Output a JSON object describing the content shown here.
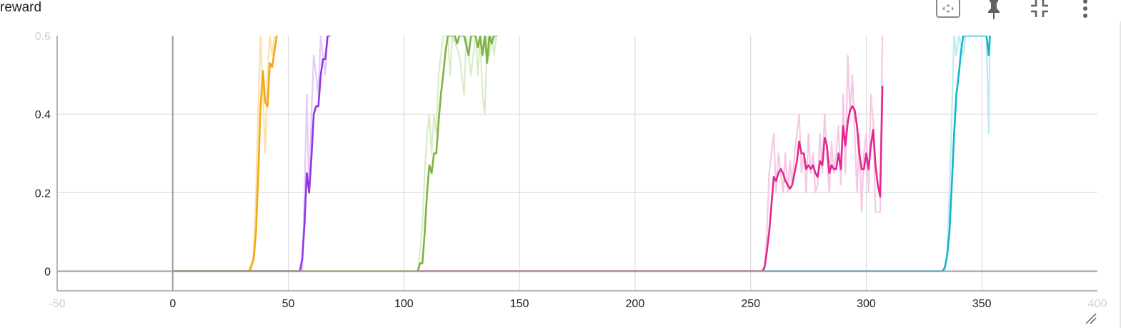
{
  "card": {
    "title": "reward",
    "tools": [
      {
        "name": "fit-domain-icon"
      },
      {
        "name": "pin-icon"
      },
      {
        "name": "collapse-icon"
      },
      {
        "name": "more-vert-icon"
      }
    ]
  },
  "chart_data": {
    "type": "line",
    "title": "reward",
    "xlabel": "",
    "ylabel": "",
    "xlim": [
      -50,
      400
    ],
    "ylim": [
      -0.05,
      0.6
    ],
    "x_ticks": [
      {
        "value": -50,
        "label": "-50",
        "faint": true
      },
      {
        "value": 0,
        "label": "0",
        "faint": false
      },
      {
        "value": 50,
        "label": "50",
        "faint": false
      },
      {
        "value": 100,
        "label": "100",
        "faint": false
      },
      {
        "value": 150,
        "label": "150",
        "faint": false
      },
      {
        "value": 200,
        "label": "200",
        "faint": false
      },
      {
        "value": 250,
        "label": "250",
        "faint": false
      },
      {
        "value": 300,
        "label": "300",
        "faint": false
      },
      {
        "value": 350,
        "label": "350",
        "faint": false
      },
      {
        "value": 400,
        "label": "400",
        "faint": true
      }
    ],
    "y_ticks": [
      {
        "value": 0,
        "label": "0",
        "faint": false
      },
      {
        "value": 0.2,
        "label": "0.2",
        "faint": false
      },
      {
        "value": 0.4,
        "label": "0.4",
        "faint": false
      },
      {
        "value": 0.6,
        "label": "0.6",
        "faint": true
      }
    ],
    "grid": true,
    "series": [
      {
        "color": "#f2a90f",
        "raw_color": "#fbe0ae",
        "smoothed": [
          [
            0,
            0
          ],
          [
            33,
            0
          ],
          [
            35,
            0.03
          ],
          [
            36,
            0.1
          ],
          [
            37,
            0.25
          ],
          [
            38,
            0.42
          ],
          [
            39,
            0.51
          ],
          [
            40,
            0.43
          ],
          [
            41,
            0.42
          ],
          [
            42,
            0.53
          ],
          [
            43,
            0.52
          ],
          [
            44,
            0.56
          ],
          [
            45,
            0.6
          ]
        ],
        "raw": [
          [
            0,
            0
          ],
          [
            34,
            0
          ],
          [
            35,
            0.05
          ],
          [
            36,
            0.2
          ],
          [
            37,
            0.42
          ],
          [
            38,
            0.6
          ],
          [
            39,
            0.45
          ],
          [
            40,
            0.3
          ],
          [
            41,
            0.5
          ],
          [
            42,
            0.6
          ],
          [
            43,
            0.55
          ],
          [
            44,
            0.6
          ]
        ]
      },
      {
        "color": "#9334e6",
        "raw_color": "#e3ccf8",
        "smoothed": [
          [
            0,
            0
          ],
          [
            55,
            0
          ],
          [
            56,
            0.03
          ],
          [
            57,
            0.12
          ],
          [
            58,
            0.25
          ],
          [
            59,
            0.2
          ],
          [
            60,
            0.29
          ],
          [
            61,
            0.4
          ],
          [
            62,
            0.42
          ],
          [
            63,
            0.42
          ],
          [
            64,
            0.5
          ],
          [
            65,
            0.54
          ],
          [
            66,
            0.54
          ],
          [
            67,
            0.6
          ],
          [
            68,
            0.6
          ]
        ],
        "raw": [
          [
            56,
            0
          ],
          [
            57,
            0.2
          ],
          [
            58,
            0.45
          ],
          [
            59,
            0.2
          ],
          [
            60,
            0.4
          ],
          [
            61,
            0.55
          ],
          [
            62,
            0.5
          ],
          [
            63,
            0.45
          ],
          [
            64,
            0.6
          ],
          [
            65,
            0.55
          ],
          [
            66,
            0.5
          ],
          [
            67,
            0.6
          ]
        ]
      },
      {
        "color": "#7cb342",
        "raw_color": "#d9ecc7",
        "smoothed": [
          [
            0,
            0
          ],
          [
            106,
            0
          ],
          [
            107,
            0.02
          ],
          [
            108,
            0.02
          ],
          [
            109,
            0.1
          ],
          [
            110,
            0.2
          ],
          [
            111,
            0.27
          ],
          [
            112,
            0.25
          ],
          [
            113,
            0.3
          ],
          [
            114,
            0.3
          ],
          [
            115,
            0.38
          ],
          [
            116,
            0.45
          ],
          [
            117,
            0.5
          ],
          [
            118,
            0.56
          ],
          [
            119,
            0.6
          ],
          [
            122,
            0.6
          ],
          [
            123,
            0.58
          ],
          [
            124,
            0.6
          ],
          [
            126,
            0.6
          ],
          [
            128,
            0.55
          ],
          [
            129,
            0.6
          ],
          [
            131,
            0.6
          ],
          [
            132,
            0.57
          ],
          [
            133,
            0.6
          ],
          [
            134,
            0.55
          ],
          [
            135,
            0.6
          ],
          [
            136,
            0.53
          ],
          [
            137,
            0.6
          ],
          [
            138,
            0.58
          ],
          [
            139,
            0.6
          ],
          [
            140,
            0.6
          ]
        ],
        "raw": [
          [
            106,
            0
          ],
          [
            107,
            0.05
          ],
          [
            108,
            0.12
          ],
          [
            109,
            0.25
          ],
          [
            110,
            0.35
          ],
          [
            111,
            0.4
          ],
          [
            112,
            0.3
          ],
          [
            113,
            0.4
          ],
          [
            114,
            0.35
          ],
          [
            115,
            0.5
          ],
          [
            116,
            0.55
          ],
          [
            117,
            0.6
          ],
          [
            119,
            0.6
          ],
          [
            120,
            0.5
          ],
          [
            121,
            0.6
          ],
          [
            124,
            0.55
          ],
          [
            126,
            0.45
          ],
          [
            127,
            0.6
          ],
          [
            129,
            0.5
          ],
          [
            130,
            0.55
          ],
          [
            131,
            0.6
          ],
          [
            132,
            0.5
          ],
          [
            133,
            0.6
          ],
          [
            134,
            0.45
          ],
          [
            135,
            0.4
          ],
          [
            136,
            0.6
          ],
          [
            137,
            0.55
          ],
          [
            138,
            0.6
          ],
          [
            139,
            0.55
          ],
          [
            140,
            0.6
          ]
        ]
      },
      {
        "color": "#e52592",
        "raw_color": "#f6c8e2",
        "smoothed": [
          [
            106,
            0
          ],
          [
            255,
            0
          ],
          [
            256,
            0.01
          ],
          [
            257,
            0.05
          ],
          [
            258,
            0.1
          ],
          [
            259,
            0.17
          ],
          [
            260,
            0.24
          ],
          [
            261,
            0.23
          ],
          [
            262,
            0.25
          ],
          [
            263,
            0.26
          ],
          [
            264,
            0.25
          ],
          [
            265,
            0.23
          ],
          [
            266,
            0.22
          ],
          [
            267,
            0.21
          ],
          [
            268,
            0.22
          ],
          [
            269,
            0.25
          ],
          [
            270,
            0.28
          ],
          [
            271,
            0.33
          ],
          [
            272,
            0.3
          ],
          [
            273,
            0.3
          ],
          [
            274,
            0.26
          ],
          [
            275,
            0.27
          ],
          [
            276,
            0.26
          ],
          [
            277,
            0.27
          ],
          [
            278,
            0.25
          ],
          [
            279,
            0.24
          ],
          [
            280,
            0.28
          ],
          [
            281,
            0.27
          ],
          [
            282,
            0.34
          ],
          [
            283,
            0.32
          ],
          [
            284,
            0.25
          ],
          [
            285,
            0.27
          ],
          [
            286,
            0.26
          ],
          [
            287,
            0.26
          ],
          [
            288,
            0.3
          ],
          [
            289,
            0.26
          ],
          [
            290,
            0.37
          ],
          [
            291,
            0.32
          ],
          [
            292,
            0.38
          ],
          [
            293,
            0.41
          ],
          [
            294,
            0.42
          ],
          [
            295,
            0.41
          ],
          [
            296,
            0.37
          ],
          [
            297,
            0.3
          ],
          [
            298,
            0.26
          ],
          [
            299,
            0.26
          ],
          [
            300,
            0.3
          ],
          [
            301,
            0.26
          ],
          [
            302,
            0.32
          ],
          [
            303,
            0.36
          ],
          [
            304,
            0.27
          ],
          [
            305,
            0.22
          ],
          [
            306,
            0.19
          ],
          [
            307,
            0.47
          ]
        ],
        "raw": [
          [
            256,
            0
          ],
          [
            257,
            0.1
          ],
          [
            258,
            0.25
          ],
          [
            259,
            0.3
          ],
          [
            260,
            0.35
          ],
          [
            261,
            0.2
          ],
          [
            262,
            0.3
          ],
          [
            263,
            0.25
          ],
          [
            264,
            0.2
          ],
          [
            265,
            0.3
          ],
          [
            266,
            0.2
          ],
          [
            267,
            0.28
          ],
          [
            268,
            0.22
          ],
          [
            269,
            0.3
          ],
          [
            270,
            0.35
          ],
          [
            271,
            0.4
          ],
          [
            272,
            0.25
          ],
          [
            273,
            0.3
          ],
          [
            274,
            0.2
          ],
          [
            275,
            0.35
          ],
          [
            276,
            0.25
          ],
          [
            277,
            0.3
          ],
          [
            278,
            0.2
          ],
          [
            279,
            0.22
          ],
          [
            280,
            0.35
          ],
          [
            281,
            0.25
          ],
          [
            282,
            0.4
          ],
          [
            283,
            0.3
          ],
          [
            284,
            0.2
          ],
          [
            285,
            0.33
          ],
          [
            286,
            0.25
          ],
          [
            287,
            0.3
          ],
          [
            288,
            0.37
          ],
          [
            289,
            0.22
          ],
          [
            290,
            0.45
          ],
          [
            291,
            0.25
          ],
          [
            292,
            0.55
          ],
          [
            293,
            0.4
          ],
          [
            294,
            0.5
          ],
          [
            295,
            0.35
          ],
          [
            296,
            0.2
          ],
          [
            297,
            0.35
          ],
          [
            298,
            0.15
          ],
          [
            299,
            0.3
          ],
          [
            300,
            0.35
          ],
          [
            301,
            0.2
          ],
          [
            302,
            0.45
          ],
          [
            303,
            0.38
          ],
          [
            304,
            0.15
          ],
          [
            305,
            0.15
          ],
          [
            306,
            0.15
          ],
          [
            307,
            0.6
          ]
        ]
      },
      {
        "color": "#12b5cb",
        "raw_color": "#bdebf3",
        "smoothed": [
          [
            255,
            0
          ],
          [
            333,
            0
          ],
          [
            334,
            0.01
          ],
          [
            335,
            0.04
          ],
          [
            336,
            0.1
          ],
          [
            337,
            0.22
          ],
          [
            338,
            0.35
          ],
          [
            339,
            0.45
          ],
          [
            340,
            0.5
          ],
          [
            341,
            0.56
          ],
          [
            342,
            0.6
          ],
          [
            352,
            0.6
          ],
          [
            353,
            0.55
          ],
          [
            353.5,
            0.6
          ]
        ],
        "raw": [
          [
            334,
            0
          ],
          [
            335,
            0.05
          ],
          [
            336,
            0.2
          ],
          [
            337,
            0.4
          ],
          [
            338,
            0.6
          ],
          [
            339,
            0.55
          ],
          [
            340,
            0.6
          ],
          [
            342,
            0.55
          ],
          [
            343,
            0.6
          ],
          [
            352,
            0.6
          ],
          [
            353,
            0.35
          ],
          [
            353.5,
            0.6
          ]
        ]
      }
    ]
  }
}
